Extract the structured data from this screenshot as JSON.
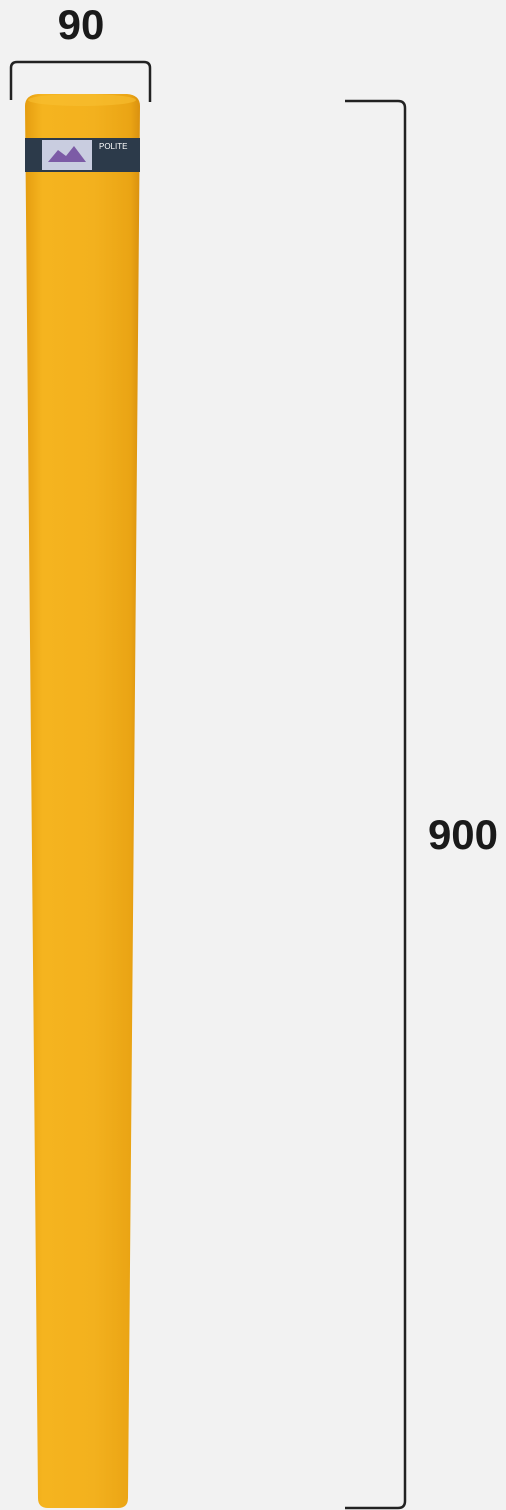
{
  "dimensions": {
    "width": "90",
    "height": "900"
  },
  "sticker": {
    "text": "POLITE"
  }
}
